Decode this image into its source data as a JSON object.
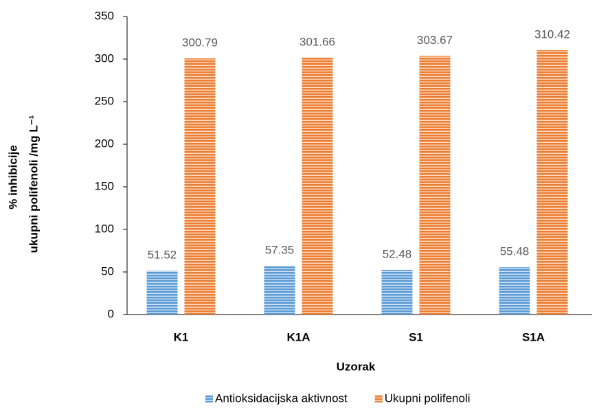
{
  "chart_data": {
    "type": "bar",
    "ylabel": [
      "% inhibicije",
      "ukupni polifenoli /mg L⁻¹"
    ],
    "xlabel": "Uzorak",
    "categories": [
      "K1",
      "K1A",
      "S1",
      "S1A"
    ],
    "series": [
      {
        "name": "Antioksidacijska aktivnost",
        "color": "#5b9bd5",
        "values": [
          51.52,
          57.35,
          52.48,
          55.48
        ]
      },
      {
        "name": "Ukupni polifenoli",
        "color": "#ed7d31",
        "values": [
          300.79,
          301.66,
          303.67,
          310.42
        ]
      }
    ],
    "ylim": [
      0,
      350
    ],
    "yticks": [
      0,
      50,
      100,
      150,
      200,
      250,
      300,
      350
    ],
    "grid": false,
    "legend": "bottom"
  }
}
